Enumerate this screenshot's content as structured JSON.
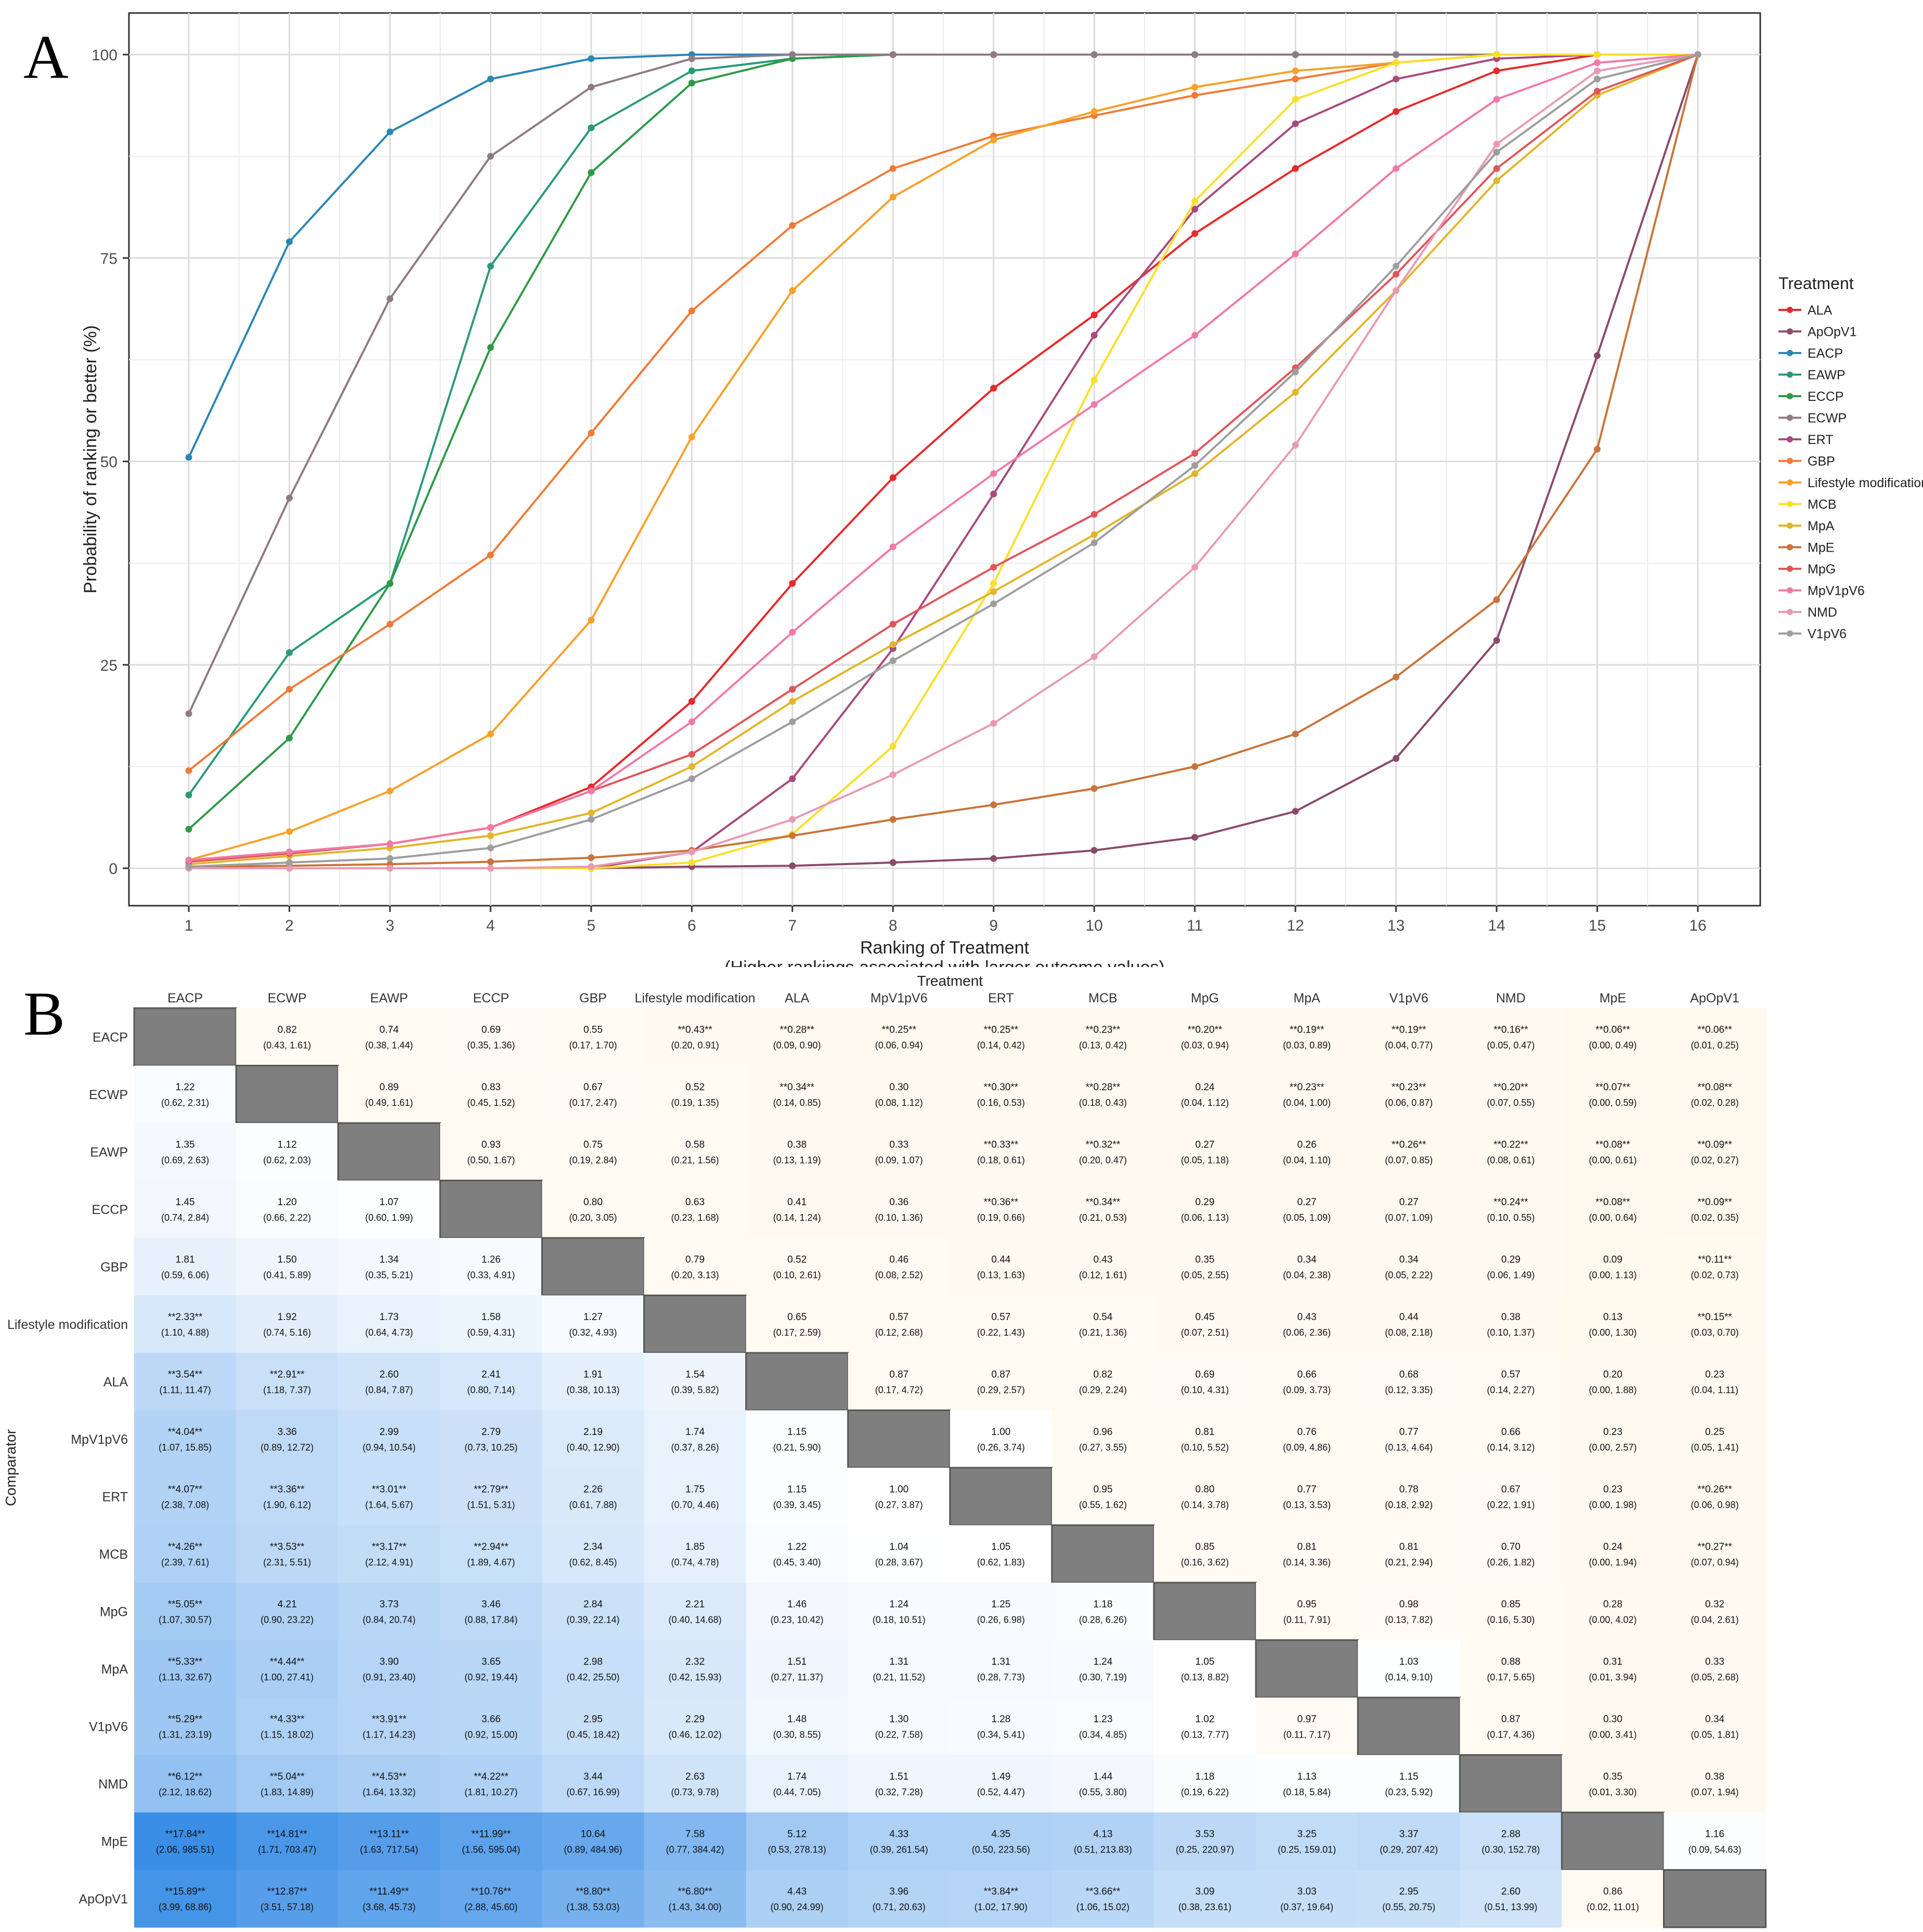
{
  "panel_labels": [
    "A",
    "B"
  ],
  "chart_data": [
    {
      "type": "line",
      "xlabel": "Ranking of Treatment",
      "xlabel_note": "(Higher rankings associated with larger outcome values)",
      "ylabel": "Probability of ranking or better (%)",
      "x": [
        1,
        2,
        3,
        4,
        5,
        6,
        7,
        8,
        9,
        10,
        11,
        12,
        13,
        14,
        15,
        16
      ],
      "xlim": [
        1,
        16
      ],
      "ylim": [
        0,
        100
      ],
      "yticks": [
        0,
        25,
        50,
        75,
        100
      ],
      "grid": true,
      "legend_title": "Treatment",
      "legend_position": "right",
      "series": [
        {
          "name": "ALA",
          "color": "#e8292b",
          "values": [
            1,
            2,
            3,
            5,
            10,
            20.5,
            35,
            48,
            59,
            68,
            78,
            86,
            93,
            98,
            100,
            100
          ]
        },
        {
          "name": "ApOpV1",
          "color": "#8b4a6b",
          "values": [
            0,
            0,
            0,
            0,
            0,
            0.2,
            0.3,
            0.7,
            1.2,
            2.2,
            3.8,
            7,
            13.5,
            28,
            63,
            100
          ]
        },
        {
          "name": "EACP",
          "color": "#2b86b5",
          "values": [
            50.5,
            77,
            90.5,
            97,
            99.5,
            100,
            100,
            100,
            100,
            100,
            100,
            100,
            100,
            100,
            100,
            100
          ]
        },
        {
          "name": "EAWP",
          "color": "#2a9a78",
          "values": [
            9,
            26.5,
            35,
            74,
            91,
            98,
            99.5,
            100,
            100,
            100,
            100,
            100,
            100,
            100,
            100,
            100
          ]
        },
        {
          "name": "ECCP",
          "color": "#2e9a48",
          "values": [
            4.8,
            16,
            35,
            64,
            85.5,
            96.5,
            99.5,
            100,
            100,
            100,
            100,
            100,
            100,
            100,
            100,
            100
          ]
        },
        {
          "name": "ECWP",
          "color": "#8e7b86",
          "values": [
            19,
            45.5,
            70,
            87.5,
            96,
            99.5,
            100,
            100,
            100,
            100,
            100,
            100,
            100,
            100,
            100,
            100
          ]
        },
        {
          "name": "ERT",
          "color": "#a84a7d",
          "values": [
            0,
            0,
            0,
            0,
            0,
            2,
            11,
            27,
            46,
            65.5,
            81,
            91.5,
            97,
            99.5,
            100,
            100
          ]
        },
        {
          "name": "GBP",
          "color": "#f07b38",
          "values": [
            12,
            22,
            30,
            38.5,
            53.5,
            68.5,
            79,
            86,
            90,
            92.5,
            95,
            97,
            99,
            100,
            100,
            100
          ]
        },
        {
          "name": "Lifestyle modification",
          "color": "#f7a12a",
          "values": [
            1,
            4.5,
            9.5,
            16.5,
            30.5,
            53,
            71,
            82.5,
            89.5,
            93,
            96,
            98,
            99,
            100,
            100,
            100
          ]
        },
        {
          "name": "MCB",
          "color": "#f8e02a",
          "values": [
            0,
            0,
            0,
            0,
            0,
            0.7,
            4.2,
            15,
            35,
            60,
            82,
            94.5,
            99,
            100,
            100,
            100
          ]
        },
        {
          "name": "MpA",
          "color": "#e2b52a",
          "values": [
            0.5,
            1.5,
            2.5,
            4,
            6.8,
            12.5,
            20.5,
            27.5,
            34,
            41,
            48.5,
            58.5,
            71,
            84.5,
            95,
            100
          ]
        },
        {
          "name": "MpE",
          "color": "#c9743a",
          "values": [
            0.2,
            0.3,
            0.5,
            0.8,
            1.3,
            2.2,
            4,
            6,
            7.8,
            9.8,
            12.5,
            16.5,
            23.5,
            33,
            51.5,
            100
          ]
        },
        {
          "name": "MpG",
          "color": "#e0565a",
          "values": [
            0.8,
            1.8,
            3,
            5,
            9.5,
            14,
            22,
            30,
            37,
            43.5,
            51,
            61.5,
            73,
            86,
            95.5,
            100
          ]
        },
        {
          "name": "MpV1pV6",
          "color": "#f07aa7",
          "values": [
            1,
            2,
            3,
            5,
            9.5,
            18,
            29,
            39.5,
            48.5,
            57,
            65.5,
            75.5,
            86,
            94.5,
            99,
            100
          ]
        },
        {
          "name": "NMD",
          "color": "#e89ab5",
          "values": [
            0,
            0,
            0,
            0,
            0.2,
            2,
            6,
            11.5,
            17.8,
            26,
            37,
            52,
            71,
            89,
            98,
            100
          ]
        },
        {
          "name": "V1pV6",
          "color": "#9e9e9e",
          "values": [
            0.2,
            0.7,
            1.2,
            2.5,
            6,
            11,
            18,
            25.5,
            32.5,
            40,
            49.5,
            61,
            74,
            88,
            97,
            100
          ]
        }
      ]
    },
    {
      "type": "heatmap",
      "xlabel": "Treatment",
      "ylabel": "Comparator",
      "treatments": [
        "EACP",
        "ECWP",
        "EAWP",
        "ECCP",
        "GBP",
        "Lifestyle modification",
        "ALA",
        "MpV1pV6",
        "ERT",
        "MCB",
        "MpG",
        "MpA",
        "V1pV6",
        "NMD",
        "MpE",
        "ApOpV1"
      ],
      "comparators": [
        "EACP",
        "ECWP",
        "EAWP",
        "ECCP",
        "GBP",
        "Lifestyle modification",
        "ALA",
        "MpV1pV6",
        "ERT",
        "MCB",
        "MpG",
        "MpA",
        "V1pV6",
        "NMD",
        "MpE",
        "ApOpV1"
      ],
      "estimates": [
        [
          null,
          "0.82",
          "0.74",
          "0.69",
          "0.55",
          "**0.43**",
          "**0.28**",
          "**0.25**",
          "**0.25**",
          "**0.23**",
          "**0.20**",
          "**0.19**",
          "**0.19**",
          "**0.16**",
          "**0.06**",
          "**0.06**"
        ],
        [
          "1.22",
          null,
          "0.89",
          "0.83",
          "0.67",
          "0.52",
          "**0.34**",
          "0.30",
          "**0.30**",
          "**0.28**",
          "0.24",
          "**0.23**",
          "**0.23**",
          "**0.20**",
          "**0.07**",
          "**0.08**"
        ],
        [
          "1.35",
          "1.12",
          null,
          "0.93",
          "0.75",
          "0.58",
          "0.38",
          "0.33",
          "**0.33**",
          "**0.32**",
          "0.27",
          "0.26",
          "**0.26**",
          "**0.22**",
          "**0.08**",
          "**0.09**"
        ],
        [
          "1.45",
          "1.20",
          "1.07",
          null,
          "0.80",
          "0.63",
          "0.41",
          "0.36",
          "**0.36**",
          "**0.34**",
          "0.29",
          "0.27",
          "0.27",
          "**0.24**",
          "**0.08**",
          "**0.09**"
        ],
        [
          "1.81",
          "1.50",
          "1.34",
          "1.26",
          null,
          "0.79",
          "0.52",
          "0.46",
          "0.44",
          "0.43",
          "0.35",
          "0.34",
          "0.34",
          "0.29",
          "0.09",
          "**0.11**"
        ],
        [
          "**2.33**",
          "1.92",
          "1.73",
          "1.58",
          "1.27",
          null,
          "0.65",
          "0.57",
          "0.57",
          "0.54",
          "0.45",
          "0.43",
          "0.44",
          "0.38",
          "0.13",
          "**0.15**"
        ],
        [
          "**3.54**",
          "**2.91**",
          "2.60",
          "2.41",
          "1.91",
          "1.54",
          null,
          "0.87",
          "0.87",
          "0.82",
          "0.69",
          "0.66",
          "0.68",
          "0.57",
          "0.20",
          "0.23"
        ],
        [
          "**4.04**",
          "3.36",
          "2.99",
          "2.79",
          "2.19",
          "1.74",
          "1.15",
          null,
          "1.00",
          "0.96",
          "0.81",
          "0.76",
          "0.77",
          "0.66",
          "0.23",
          "0.25"
        ],
        [
          "**4.07**",
          "**3.36**",
          "**3.01**",
          "**2.79**",
          "2.26",
          "1.75",
          "1.15",
          "1.00",
          null,
          "0.95",
          "0.80",
          "0.77",
          "0.78",
          "0.67",
          "0.23",
          "**0.26**"
        ],
        [
          "**4.26**",
          "**3.53**",
          "**3.17**",
          "**2.94**",
          "2.34",
          "1.85",
          "1.22",
          "1.04",
          "1.05",
          null,
          "0.85",
          "0.81",
          "0.81",
          "0.70",
          "0.24",
          "**0.27**"
        ],
        [
          "**5.05**",
          "4.21",
          "3.73",
          "3.46",
          "2.84",
          "2.21",
          "1.46",
          "1.24",
          "1.25",
          "1.18",
          null,
          "0.95",
          "0.98",
          "0.85",
          "0.28",
          "0.32"
        ],
        [
          "**5.33**",
          "**4.44**",
          "3.90",
          "3.65",
          "2.98",
          "2.32",
          "1.51",
          "1.31",
          "1.31",
          "1.24",
          "1.05",
          null,
          "1.03",
          "0.88",
          "0.31",
          "0.33"
        ],
        [
          "**5.29**",
          "**4.33**",
          "**3.91**",
          "3.66",
          "2.95",
          "2.29",
          "1.48",
          "1.30",
          "1.28",
          "1.23",
          "1.02",
          "0.97",
          null,
          "0.87",
          "0.30",
          "0.34"
        ],
        [
          "**6.12**",
          "**5.04**",
          "**4.53**",
          "**4.22**",
          "3.44",
          "2.63",
          "1.74",
          "1.51",
          "1.49",
          "1.44",
          "1.18",
          "1.13",
          "1.15",
          null,
          "0.35",
          "0.38"
        ],
        [
          "**17.84**",
          "**14.81**",
          "**13.11**",
          "**11.99**",
          "10.64",
          "7.58",
          "5.12",
          "4.33",
          "4.35",
          "4.13",
          "3.53",
          "3.25",
          "3.37",
          "2.88",
          null,
          "1.16"
        ],
        [
          "**15.89**",
          "**12.87**",
          "**11.49**",
          "**10.76**",
          "**8.80**",
          "**6.80**",
          "4.43",
          "3.96",
          "**3.84**",
          "**3.66**",
          "3.09",
          "3.03",
          "2.95",
          "2.60",
          "0.86",
          null
        ]
      ],
      "intervals": [
        [
          null,
          "(0.43, 1.61)",
          "(0.38, 1.44)",
          "(0.35, 1.36)",
          "(0.17, 1.70)",
          "(0.20, 0.91)",
          "(0.09, 0.90)",
          "(0.06, 0.94)",
          "(0.14, 0.42)",
          "(0.13, 0.42)",
          "(0.03, 0.94)",
          "(0.03, 0.89)",
          "(0.04, 0.77)",
          "(0.05, 0.47)",
          "(0.00, 0.49)",
          "(0.01, 0.25)"
        ],
        [
          "(0.62, 2.31)",
          null,
          "(0.49, 1.61)",
          "(0.45, 1.52)",
          "(0.17, 2.47)",
          "(0.19, 1.35)",
          "(0.14, 0.85)",
          "(0.08, 1.12)",
          "(0.16, 0.53)",
          "(0.18, 0.43)",
          "(0.04, 1.12)",
          "(0.04, 1.00)",
          "(0.06, 0.87)",
          "(0.07, 0.55)",
          "(0.00, 0.59)",
          "(0.02, 0.28)"
        ],
        [
          "(0.69, 2.63)",
          "(0.62, 2.03)",
          null,
          "(0.50, 1.67)",
          "(0.19, 2.84)",
          "(0.21, 1.56)",
          "(0.13, 1.19)",
          "(0.09, 1.07)",
          "(0.18, 0.61)",
          "(0.20, 0.47)",
          "(0.05, 1.18)",
          "(0.04, 1.10)",
          "(0.07, 0.85)",
          "(0.08, 0.61)",
          "(0.00, 0.61)",
          "(0.02, 0.27)"
        ],
        [
          "(0.74, 2.84)",
          "(0.66, 2.22)",
          "(0.60, 1.99)",
          null,
          "(0.20, 3.05)",
          "(0.23, 1.68)",
          "(0.14, 1.24)",
          "(0.10, 1.36)",
          "(0.19, 0.66)",
          "(0.21, 0.53)",
          "(0.06, 1.13)",
          "(0.05, 1.09)",
          "(0.07, 1.09)",
          "(0.10, 0.55)",
          "(0.00, 0.64)",
          "(0.02, 0.35)"
        ],
        [
          "(0.59, 6.06)",
          "(0.41, 5.89)",
          "(0.35, 5.21)",
          "(0.33, 4.91)",
          null,
          "(0.20, 3.13)",
          "(0.10, 2.61)",
          "(0.08, 2.52)",
          "(0.13, 1.63)",
          "(0.12, 1.61)",
          "(0.05, 2.55)",
          "(0.04, 2.38)",
          "(0.05, 2.22)",
          "(0.06, 1.49)",
          "(0.00, 1.13)",
          "(0.02, 0.73)"
        ],
        [
          "(1.10, 4.88)",
          "(0.74, 5.16)",
          "(0.64, 4.73)",
          "(0.59, 4.31)",
          "(0.32, 4.93)",
          null,
          "(0.17, 2.59)",
          "(0.12, 2.68)",
          "(0.22, 1.43)",
          "(0.21, 1.36)",
          "(0.07, 2.51)",
          "(0.06, 2.36)",
          "(0.08, 2.18)",
          "(0.10, 1.37)",
          "(0.00, 1.30)",
          "(0.03, 0.70)"
        ],
        [
          "(1.11, 11.47)",
          "(1.18, 7.37)",
          "(0.84, 7.87)",
          "(0.80, 7.14)",
          "(0.38, 10.13)",
          "(0.39, 5.82)",
          null,
          "(0.17, 4.72)",
          "(0.29, 2.57)",
          "(0.29, 2.24)",
          "(0.10, 4.31)",
          "(0.09, 3.73)",
          "(0.12, 3.35)",
          "(0.14, 2.27)",
          "(0.00, 1.88)",
          "(0.04, 1.11)"
        ],
        [
          "(1.07, 15.85)",
          "(0.89, 12.72)",
          "(0.94, 10.54)",
          "(0.73, 10.25)",
          "(0.40, 12.90)",
          "(0.37, 8.26)",
          "(0.21, 5.90)",
          null,
          "(0.26, 3.74)",
          "(0.27, 3.55)",
          "(0.10, 5.52)",
          "(0.09, 4.86)",
          "(0.13, 4.64)",
          "(0.14, 3.12)",
          "(0.00, 2.57)",
          "(0.05, 1.41)"
        ],
        [
          "(2.38, 7.08)",
          "(1.90, 6.12)",
          "(1.64, 5.67)",
          "(1.51, 5.31)",
          "(0.61, 7.88)",
          "(0.70, 4.46)",
          "(0.39, 3.45)",
          "(0.27, 3.87)",
          null,
          "(0.55, 1.62)",
          "(0.14, 3.78)",
          "(0.13, 3.53)",
          "(0.18, 2.92)",
          "(0.22, 1.91)",
          "(0.00, 1.98)",
          "(0.06, 0.98)"
        ],
        [
          "(2.39, 7.61)",
          "(2.31, 5.51)",
          "(2.12, 4.91)",
          "(1.89, 4.67)",
          "(0.62, 8.45)",
          "(0.74, 4.78)",
          "(0.45, 3.40)",
          "(0.28, 3.67)",
          "(0.62, 1.83)",
          null,
          "(0.16, 3.62)",
          "(0.14, 3.36)",
          "(0.21, 2.94)",
          "(0.26, 1.82)",
          "(0.00, 1.94)",
          "(0.07, 0.94)"
        ],
        [
          "(1.07, 30.57)",
          "(0.90, 23.22)",
          "(0.84, 20.74)",
          "(0.88, 17.84)",
          "(0.39, 22.14)",
          "(0.40, 14.68)",
          "(0.23, 10.42)",
          "(0.18, 10.51)",
          "(0.26, 6.98)",
          "(0.28, 6.26)",
          null,
          "(0.11, 7.91)",
          "(0.13, 7.82)",
          "(0.16, 5.30)",
          "(0.00, 4.02)",
          "(0.04, 2.61)"
        ],
        [
          "(1.13, 32.67)",
          "(1.00, 27.41)",
          "(0.91, 23.40)",
          "(0.92, 19.44)",
          "(0.42, 25.50)",
          "(0.42, 15.93)",
          "(0.27, 11.37)",
          "(0.21, 11.52)",
          "(0.28, 7.73)",
          "(0.30, 7.19)",
          "(0.13, 8.82)",
          null,
          "(0.14, 9.10)",
          "(0.17, 5.65)",
          "(0.01, 3.94)",
          "(0.05, 2.68)"
        ],
        [
          "(1.31, 23.19)",
          "(1.15, 18.02)",
          "(1.17, 14.23)",
          "(0.92, 15.00)",
          "(0.45, 18.42)",
          "(0.46, 12.02)",
          "(0.30, 8.55)",
          "(0.22, 7.58)",
          "(0.34, 5.41)",
          "(0.34, 4.85)",
          "(0.13, 7.77)",
          "(0.11, 7.17)",
          null,
          "(0.17, 4.36)",
          "(0.00, 3.41)",
          "(0.05, 1.81)"
        ],
        [
          "(2.12, 18.62)",
          "(1.83, 14.89)",
          "(1.64, 13.32)",
          "(1.81, 10.27)",
          "(0.67, 16.99)",
          "(0.73, 9.78)",
          "(0.44, 7.05)",
          "(0.32, 7.28)",
          "(0.52, 4.47)",
          "(0.55, 3.80)",
          "(0.19, 6.22)",
          "(0.18, 5.84)",
          "(0.23, 5.92)",
          null,
          "(0.01, 3.30)",
          "(0.07, 1.94)"
        ],
        [
          "(2.06, 985.51)",
          "(1.71, 703.47)",
          "(1.63, 717.54)",
          "(1.56, 595.04)",
          "(0.89, 484.96)",
          "(0.77, 384.42)",
          "(0.53, 278.13)",
          "(0.39, 261.54)",
          "(0.50, 223.56)",
          "(0.51, 213.83)",
          "(0.25, 220.97)",
          "(0.25, 159.01)",
          "(0.29, 207.42)",
          "(0.30, 152.78)",
          null,
          "(0.09, 54.63)"
        ],
        [
          "(3.99, 68.86)",
          "(3.51, 57.18)",
          "(3.68, 45.73)",
          "(2.88, 45.60)",
          "(1.38, 53.03)",
          "(1.43, 34.00)",
          "(0.90, 24.99)",
          "(0.71, 20.63)",
          "(1.02, 17.90)",
          "(1.06, 15.02)",
          "(0.38, 23.61)",
          "(0.37, 19.64)",
          "(0.55, 20.75)",
          "(0.51, 13.99)",
          "(0.02, 11.01)",
          null
        ]
      ],
      "colors": {
        "high": "#3a8ee6",
        "neutral": "#ffffff",
        "low": "#fff8ec",
        "diagonal": "#7f7f7f"
      }
    }
  ]
}
